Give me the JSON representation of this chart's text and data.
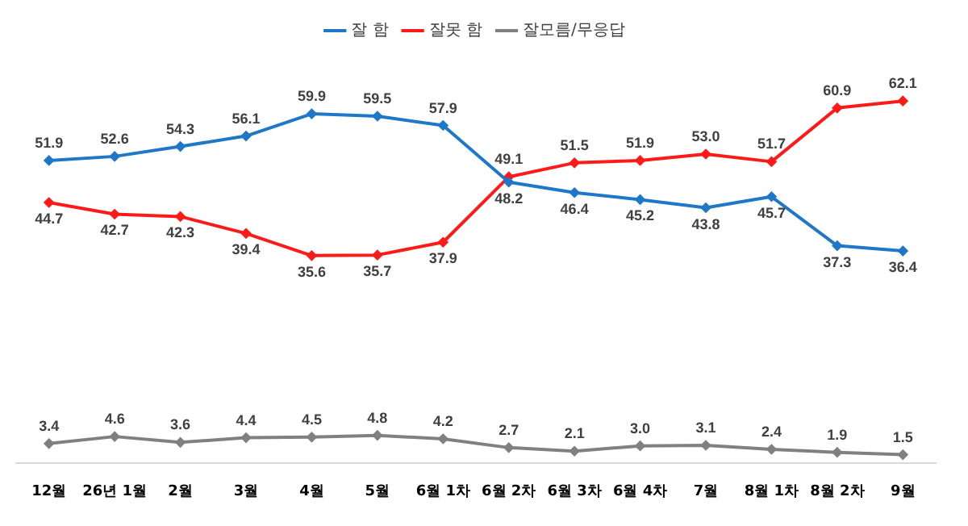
{
  "chart_data": {
    "type": "line",
    "categories": [
      "12월",
      "26년 1월",
      "2월",
      "3월",
      "4월",
      "5월",
      "6월 1차",
      "6월 2차",
      "6월 3차",
      "6월 4차",
      "7월",
      "8월 1차",
      "8월 2차",
      "9월"
    ],
    "series": [
      {
        "name": "잘 함",
        "color": "#1f77c8",
        "values": [
          51.9,
          52.6,
          54.3,
          56.1,
          59.9,
          59.5,
          57.9,
          48.2,
          46.4,
          45.2,
          43.8,
          45.7,
          37.3,
          36.4
        ],
        "value_labels": [
          "51.9",
          "52.6",
          "54.3",
          "56.1",
          "59.9",
          "59.5",
          "57.9",
          "48.2",
          "46.4",
          "45.2",
          "43.8",
          "45.7",
          "37.3",
          "36.4"
        ]
      },
      {
        "name": "잘못 함",
        "color": "#ff1a1a",
        "values": [
          44.7,
          42.7,
          42.3,
          39.4,
          35.6,
          35.7,
          37.9,
          49.1,
          51.5,
          51.9,
          53.0,
          51.7,
          60.9,
          62.1
        ],
        "value_labels": [
          "44.7",
          "42.7",
          "42.3",
          "39.4",
          "35.6",
          "35.7",
          "37.9",
          "49.1",
          "51.5",
          "51.9",
          "53.0",
          "51.7",
          "60.9",
          "62.1"
        ]
      },
      {
        "name": "잘모름/무응답",
        "color": "#808080",
        "values": [
          3.4,
          4.6,
          3.6,
          4.4,
          4.5,
          4.8,
          4.2,
          2.7,
          2.1,
          3.0,
          3.1,
          2.4,
          1.9,
          1.5
        ],
        "value_labels": [
          "3.4",
          "4.6",
          "3.6",
          "4.4",
          "4.5",
          "4.8",
          "4.2",
          "2.7",
          "2.1",
          "3.0",
          "3.1",
          "2.4",
          "1.9",
          "1.5"
        ]
      }
    ],
    "tick_labels": "x",
    "legend": "top",
    "marker": "diamond",
    "line_style": "solid"
  }
}
